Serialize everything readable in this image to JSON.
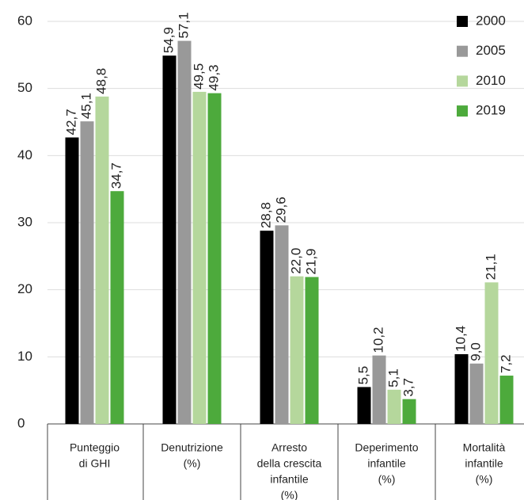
{
  "chart_data": {
    "type": "bar",
    "categories": [
      [
        "Punteggio",
        "di GHI"
      ],
      [
        "Denutrizione",
        "(%)"
      ],
      [
        "Arresto",
        "della crescita",
        "infantile",
        "(%)"
      ],
      [
        "Deperimento",
        "infantile",
        "(%)"
      ],
      [
        "Mortalità",
        "infantile",
        "(%)"
      ]
    ],
    "series": [
      {
        "name": "2000",
        "color": "#000000",
        "values": [
          42.7,
          54.9,
          28.8,
          5.5,
          10.4
        ],
        "value_labels": [
          "42,7",
          "54,9",
          "28,8",
          "5,5",
          "10,4"
        ]
      },
      {
        "name": "2005",
        "color": "#999999",
        "values": [
          45.1,
          57.1,
          29.6,
          10.2,
          9.0
        ],
        "value_labels": [
          "45,1",
          "57,1",
          "29,6",
          "10,2",
          "9,0"
        ]
      },
      {
        "name": "2010",
        "color": "#b5d79c",
        "values": [
          48.8,
          49.5,
          22.0,
          5.1,
          21.1
        ],
        "value_labels": [
          "48,8",
          "49,5",
          "22,0",
          "5,1",
          "21,1"
        ]
      },
      {
        "name": "2019",
        "color": "#4daa3c",
        "values": [
          34.7,
          49.3,
          21.9,
          3.7,
          7.2
        ],
        "value_labels": [
          "34,7",
          "49,3",
          "21,9",
          "3,7",
          "7,2"
        ]
      }
    ],
    "ylim": [
      0,
      60
    ],
    "yticks": [
      0,
      10,
      20,
      30,
      40,
      50,
      60
    ],
    "grid": true,
    "legend": "top-right"
  }
}
